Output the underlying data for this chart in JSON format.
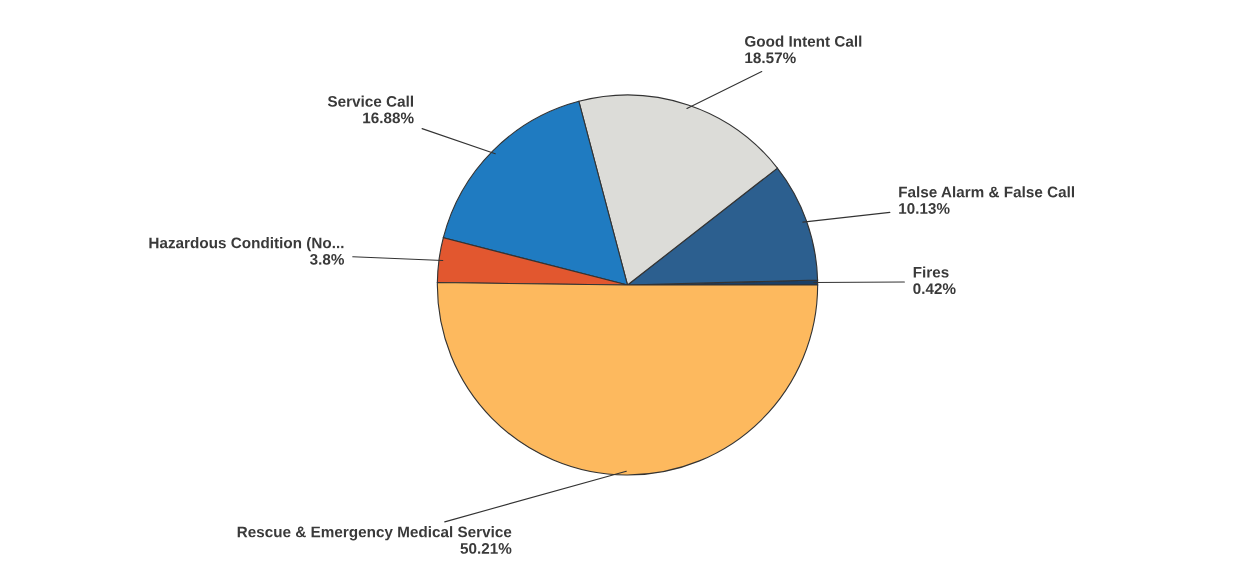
{
  "chart_data": {
    "type": "pie",
    "categories": [
      "Fires",
      "False Alarm & False Call",
      "Good Intent Call",
      "Service Call",
      "Hazardous Condition (No...",
      "Rescue & Emergency Medical Service"
    ],
    "values": [
      0.42,
      10.13,
      18.57,
      16.88,
      3.8,
      50.21
    ],
    "value_labels": [
      "0.42%",
      "10.13%",
      "18.57%",
      "16.88%",
      "3.8%",
      "50.21%"
    ],
    "colors": [
      "#1b3f66",
      "#2c5f8f",
      "#dcdcd8",
      "#1f7bc1",
      "#e2572f",
      "#fdb95e"
    ],
    "legend": false
  }
}
